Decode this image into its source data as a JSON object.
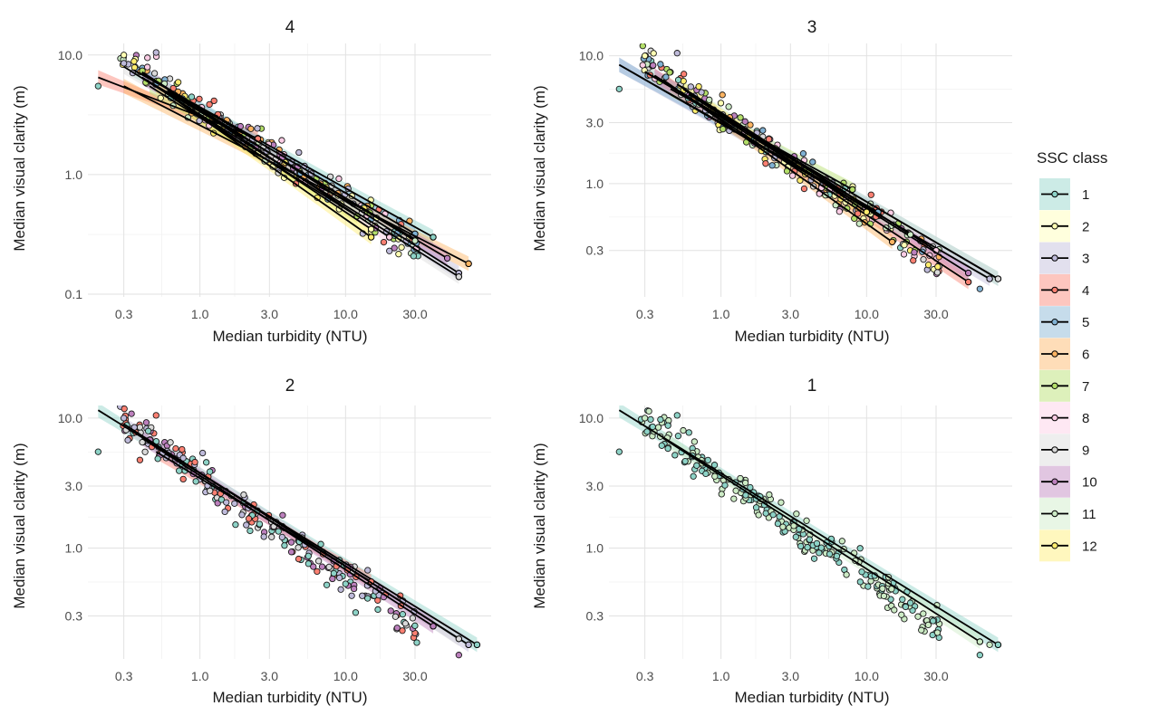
{
  "legend": {
    "title": "SSC class",
    "entries": [
      {
        "label": "1",
        "color": "#8dd3c7"
      },
      {
        "label": "2",
        "color": "#ffffb3"
      },
      {
        "label": "3",
        "color": "#bebada"
      },
      {
        "label": "4",
        "color": "#fb8072"
      },
      {
        "label": "5",
        "color": "#80b1d3"
      },
      {
        "label": "6",
        "color": "#fdb462"
      },
      {
        "label": "7",
        "color": "#b3de69"
      },
      {
        "label": "8",
        "color": "#fccde5"
      },
      {
        "label": "9",
        "color": "#d9d9d9"
      },
      {
        "label": "10",
        "color": "#bc80bd"
      },
      {
        "label": "11",
        "color": "#ccebc5"
      },
      {
        "label": "12",
        "color": "#ffed6f"
      }
    ]
  },
  "chart_data": [
    {
      "type": "scatter",
      "title": "4",
      "xlabel": "Median turbidity (NTU)",
      "ylabel": "Median visual clarity (m)",
      "x_scale": "log10",
      "y_scale": "log10",
      "xlim": [
        0.17,
        100
      ],
      "ylim": [
        0.095,
        12.5
      ],
      "x_ticks": [
        {
          "value": 0.3,
          "label": "0.3"
        },
        {
          "value": 1,
          "label": "1.0"
        },
        {
          "value": 3,
          "label": "3.0"
        },
        {
          "value": 10,
          "label": "10.0"
        },
        {
          "value": 30,
          "label": "30.0"
        }
      ],
      "y_ticks": [
        {
          "value": 0.1,
          "label": "0.1"
        },
        {
          "value": 1,
          "label": "1.0"
        },
        {
          "value": 10,
          "label": "10.0"
        }
      ],
      "grid": true,
      "series": [
        {
          "name": "1",
          "fit": [
            [
              0.35,
              7.5
            ],
            [
              40,
              0.3
            ]
          ]
        },
        {
          "name": "2",
          "fit": [
            [
              0.5,
              5.5
            ],
            [
              15,
              0.35
            ]
          ]
        },
        {
          "name": "3",
          "fit": [
            [
              0.4,
              7.2
            ],
            [
              60,
              0.15
            ]
          ]
        },
        {
          "name": "4",
          "fit": [
            [
              0.2,
              6.5
            ],
            [
              2.5,
              2.0
            ]
          ]
        },
        {
          "name": "5",
          "fit": [
            [
              0.4,
              7.0
            ],
            [
              30,
              0.32
            ]
          ]
        },
        {
          "name": "6",
          "fit": [
            [
              0.3,
              5.5
            ],
            [
              70,
              0.18
            ]
          ]
        },
        {
          "name": "7",
          "fit": [
            [
              0.45,
              5.5
            ],
            [
              12,
              0.45
            ]
          ]
        },
        {
          "name": "8",
          "fit": [
            [
              0.5,
              6.0
            ],
            [
              20,
              0.3
            ]
          ]
        },
        {
          "name": "9",
          "fit": [
            [
              0.3,
              8.0
            ],
            [
              60,
              0.14
            ]
          ]
        },
        {
          "name": "10",
          "fit": [
            [
              0.4,
              6.5
            ],
            [
              50,
              0.2
            ]
          ]
        },
        {
          "name": "11",
          "fit": [
            [
              0.6,
              5.0
            ],
            [
              30,
              0.28
            ]
          ]
        },
        {
          "name": "12",
          "fit": [
            [
              0.5,
              5.5
            ],
            [
              15,
              0.3
            ]
          ]
        }
      ]
    },
    {
      "type": "scatter",
      "title": "3",
      "xlabel": "Median turbidity (NTU)",
      "ylabel": "Median visual clarity (m)",
      "x_scale": "log10",
      "y_scale": "log10",
      "xlim": [
        0.17,
        100
      ],
      "ylim": [
        0.13,
        12.5
      ],
      "x_ticks": [
        {
          "value": 0.3,
          "label": "0.3"
        },
        {
          "value": 1,
          "label": "1.0"
        },
        {
          "value": 3,
          "label": "3.0"
        },
        {
          "value": 10,
          "label": "10.0"
        },
        {
          "value": 30,
          "label": "30.0"
        }
      ],
      "y_ticks": [
        {
          "value": 0.3,
          "label": "0.3"
        },
        {
          "value": 1,
          "label": "1.0"
        },
        {
          "value": 3,
          "label": "3.0"
        },
        {
          "value": 10,
          "label": "10.0"
        }
      ],
      "grid": true,
      "series": [
        {
          "name": "1",
          "fit": [
            [
              0.3,
              7.5
            ],
            [
              80,
              0.18
            ]
          ]
        },
        {
          "name": "2",
          "fit": [
            [
              0.5,
              6.0
            ],
            [
              10,
              0.6
            ]
          ]
        },
        {
          "name": "3",
          "fit": [
            [
              0.2,
              8.5
            ],
            [
              70,
              0.18
            ]
          ]
        },
        {
          "name": "4",
          "fit": [
            [
              0.35,
              7.0
            ],
            [
              50,
              0.17
            ]
          ]
        },
        {
          "name": "5",
          "fit": [
            [
              0.2,
              8.5
            ],
            [
              12,
              0.6
            ]
          ]
        },
        {
          "name": "6",
          "fit": [
            [
              0.4,
              6.5
            ],
            [
              15,
              0.35
            ]
          ]
        },
        {
          "name": "7",
          "fit": [
            [
              0.45,
              5.5
            ],
            [
              8,
              0.9
            ]
          ]
        },
        {
          "name": "8",
          "fit": [
            [
              0.6,
              5.0
            ],
            [
              30,
              0.3
            ]
          ]
        },
        {
          "name": "9",
          "fit": [
            [
              0.3,
              7.5
            ],
            [
              80,
              0.18
            ]
          ]
        },
        {
          "name": "10",
          "fit": [
            [
              0.35,
              7.0
            ],
            [
              50,
              0.2
            ]
          ]
        },
        {
          "name": "11",
          "fit": [
            [
              0.5,
              6.0
            ],
            [
              20,
              0.4
            ]
          ]
        },
        {
          "name": "12",
          "fit": [
            [
              0.55,
              5.5
            ],
            [
              10,
              0.6
            ]
          ]
        }
      ]
    },
    {
      "type": "scatter",
      "title": "2",
      "xlabel": "Median turbidity (NTU)",
      "ylabel": "Median visual clarity (m)",
      "x_scale": "log10",
      "y_scale": "log10",
      "xlim": [
        0.17,
        100
      ],
      "ylim": [
        0.14,
        12.5
      ],
      "x_ticks": [
        {
          "value": 0.3,
          "label": "0.3"
        },
        {
          "value": 1,
          "label": "1.0"
        },
        {
          "value": 3,
          "label": "3.0"
        },
        {
          "value": 10,
          "label": "10.0"
        },
        {
          "value": 30,
          "label": "30.0"
        }
      ],
      "y_ticks": [
        {
          "value": 0.3,
          "label": "0.3"
        },
        {
          "value": 1,
          "label": "1.0"
        },
        {
          "value": 3,
          "label": "3.0"
        },
        {
          "value": 10,
          "label": "10.0"
        }
      ],
      "grid": true,
      "series": [
        {
          "name": "1",
          "fit": [
            [
              0.2,
              11.5
            ],
            [
              80,
              0.18
            ]
          ]
        },
        {
          "name": "3",
          "fit": [
            [
              0.3,
              9.0
            ],
            [
              70,
              0.18
            ]
          ]
        },
        {
          "name": "4",
          "fit": [
            [
              0.5,
              5.5
            ],
            [
              15,
              0.55
            ]
          ]
        },
        {
          "name": "9",
          "fit": [
            [
              0.35,
              8.0
            ],
            [
              60,
              0.2
            ]
          ]
        },
        {
          "name": "10",
          "fit": [
            [
              0.4,
              7.0
            ],
            [
              40,
              0.25
            ]
          ]
        }
      ]
    },
    {
      "type": "scatter",
      "title": "1",
      "xlabel": "Median turbidity (NTU)",
      "ylabel": "Median visual clarity (m)",
      "x_scale": "log10",
      "y_scale": "log10",
      "xlim": [
        0.17,
        100
      ],
      "ylim": [
        0.14,
        12.5
      ],
      "x_ticks": [
        {
          "value": 0.3,
          "label": "0.3"
        },
        {
          "value": 1,
          "label": "1.0"
        },
        {
          "value": 3,
          "label": "3.0"
        },
        {
          "value": 10,
          "label": "10.0"
        },
        {
          "value": 30,
          "label": "30.0"
        }
      ],
      "y_ticks": [
        {
          "value": 0.3,
          "label": "0.3"
        },
        {
          "value": 1,
          "label": "1.0"
        },
        {
          "value": 3,
          "label": "3.0"
        },
        {
          "value": 10,
          "label": "10.0"
        }
      ],
      "grid": true,
      "series": [
        {
          "name": "1",
          "fit": [
            [
              0.2,
              11.5
            ],
            [
              80,
              0.18
            ]
          ]
        },
        {
          "name": "11",
          "fit": [
            [
              0.4,
              7.0
            ],
            [
              60,
              0.19
            ]
          ]
        }
      ]
    }
  ]
}
